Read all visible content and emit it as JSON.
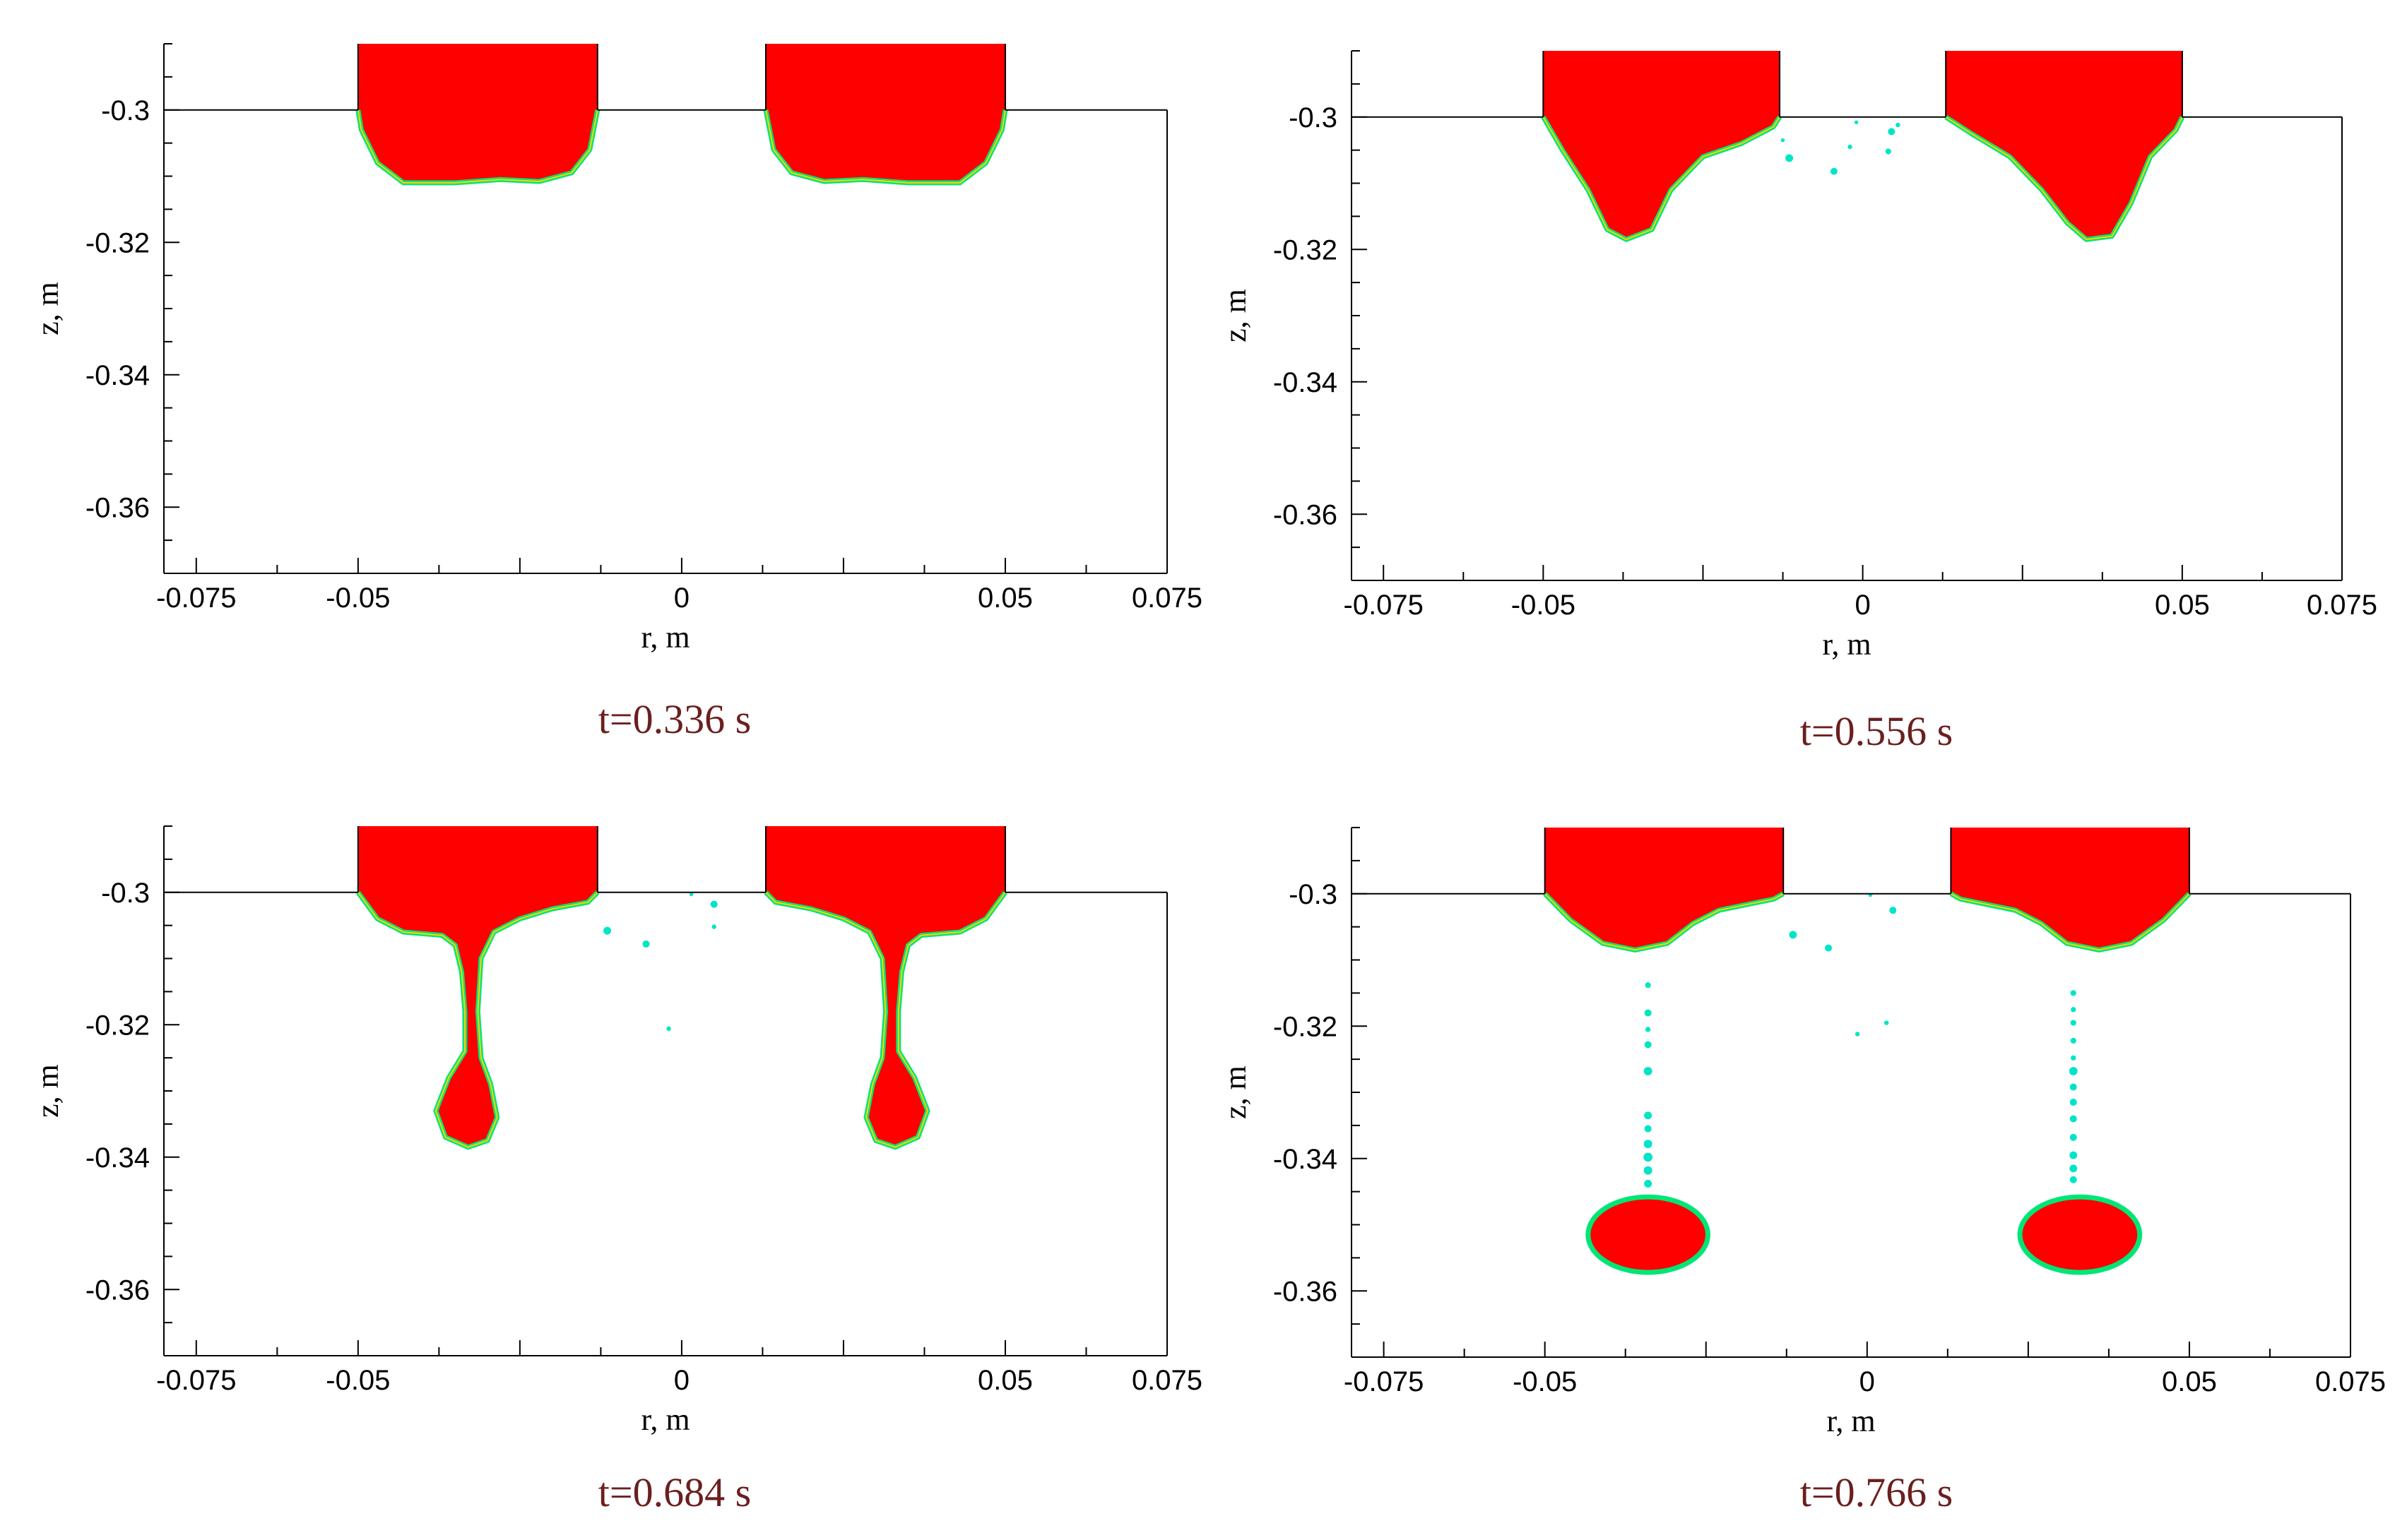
{
  "figure": {
    "colors": {
      "liquid": "#ff0000",
      "interface": "#00e676",
      "interface_inner": "#ffd400",
      "droplet": "#00e5c8",
      "axis": "#000000",
      "caption": "#6b1f1f"
    }
  },
  "chart_data": [
    {
      "type": "contour",
      "caption": "t=0.336 s",
      "xlabel": "r, m",
      "ylabel": "z, m",
      "xlim": [
        -0.08,
        0.075
      ],
      "ylim": [
        -0.37,
        -0.29
      ],
      "xticks": [
        -0.075,
        -0.05,
        0,
        0.05,
        0.075
      ],
      "xtick_labels": [
        "-0.075",
        "-0.05",
        "0",
        "0.05",
        "0.075"
      ],
      "yticks": [
        -0.3,
        -0.32,
        -0.34,
        -0.36
      ],
      "ytick_labels": [
        "-0.3",
        "-0.32",
        "-0.34",
        "-0.36"
      ],
      "wall_z": -0.3,
      "nozzles": [
        {
          "r": [
            -0.05,
            -0.013
          ],
          "profile": [
            [
              -0.05,
              -0.3
            ],
            [
              -0.0495,
              -0.303
            ],
            [
              -0.047,
              -0.308
            ],
            [
              -0.043,
              -0.311
            ],
            [
              -0.035,
              -0.311
            ],
            [
              -0.028,
              -0.3105
            ],
            [
              -0.022,
              -0.3108
            ],
            [
              -0.017,
              -0.3095
            ],
            [
              -0.0142,
              -0.306
            ],
            [
              -0.013,
              -0.3
            ]
          ]
        },
        {
          "r": [
            0.013,
            0.05
          ],
          "profile": [
            [
              0.013,
              -0.3
            ],
            [
              0.0142,
              -0.306
            ],
            [
              0.017,
              -0.3095
            ],
            [
              0.022,
              -0.3108
            ],
            [
              0.028,
              -0.3105
            ],
            [
              0.035,
              -0.311
            ],
            [
              0.043,
              -0.311
            ],
            [
              0.047,
              -0.308
            ],
            [
              0.0495,
              -0.303
            ],
            [
              0.05,
              -0.3
            ]
          ]
        }
      ],
      "drops": [],
      "satellites": []
    },
    {
      "type": "contour",
      "caption": "t=0.556 s",
      "xlabel": "r, m",
      "ylabel": "z, m",
      "xlim": [
        -0.08,
        0.075
      ],
      "ylim": [
        -0.37,
        -0.29
      ],
      "xticks": [
        -0.075,
        -0.05,
        0,
        0.05,
        0.075
      ],
      "xtick_labels": [
        "-0.075",
        "-0.05",
        "0",
        "0.05",
        "0.075"
      ],
      "yticks": [
        -0.3,
        -0.32,
        -0.34,
        -0.36
      ],
      "ytick_labels": [
        "-0.3",
        "-0.32",
        "-0.34",
        "-0.36"
      ],
      "wall_z": -0.3,
      "nozzles": [
        {
          "r": [
            -0.05,
            -0.013
          ],
          "profile": [
            [
              -0.05,
              -0.3
            ],
            [
              -0.047,
              -0.305
            ],
            [
              -0.043,
              -0.311
            ],
            [
              -0.04,
              -0.317
            ],
            [
              -0.037,
              -0.3185
            ],
            [
              -0.033,
              -0.317
            ],
            [
              -0.03,
              -0.311
            ],
            [
              -0.025,
              -0.306
            ],
            [
              -0.019,
              -0.304
            ],
            [
              -0.014,
              -0.3015
            ],
            [
              -0.013,
              -0.3
            ]
          ]
        },
        {
          "r": [
            0.013,
            0.05
          ],
          "profile": [
            [
              0.013,
              -0.3
            ],
            [
              0.017,
              -0.3025
            ],
            [
              0.023,
              -0.306
            ],
            [
              0.028,
              -0.311
            ],
            [
              0.032,
              -0.316
            ],
            [
              0.035,
              -0.3185
            ],
            [
              0.039,
              -0.318
            ],
            [
              0.042,
              -0.313
            ],
            [
              0.045,
              -0.306
            ],
            [
              0.049,
              -0.302
            ],
            [
              0.05,
              -0.3
            ]
          ]
        }
      ],
      "drops": [],
      "satellites": [
        {
          "r": -0.0125,
          "z": -0.3035,
          "d": 0.0006
        },
        {
          "r": -0.0115,
          "z": -0.3062,
          "d": 0.0012
        },
        {
          "r": -0.0045,
          "z": -0.3082,
          "d": 0.0011
        },
        {
          "r": -0.002,
          "z": -0.3045,
          "d": 0.0007
        },
        {
          "r": -0.001,
          "z": -0.3008,
          "d": 0.0006
        },
        {
          "r": 0.004,
          "z": -0.3052,
          "d": 0.0009
        },
        {
          "r": 0.0045,
          "z": -0.3022,
          "d": 0.0011
        },
        {
          "r": 0.0055,
          "z": -0.3012,
          "d": 0.0007
        }
      ]
    },
    {
      "type": "contour",
      "caption": "t=0.684 s",
      "xlabel": "r, m",
      "ylabel": "z, m",
      "xlim": [
        -0.08,
        0.075
      ],
      "ylim": [
        -0.37,
        -0.29
      ],
      "xticks": [
        -0.075,
        -0.05,
        0,
        0.05,
        0.075
      ],
      "xtick_labels": [
        "-0.075",
        "-0.05",
        "0",
        "0.05",
        "0.075"
      ],
      "yticks": [
        -0.3,
        -0.32,
        -0.34,
        -0.36
      ],
      "ytick_labels": [
        "-0.3",
        "-0.32",
        "-0.34",
        "-0.36"
      ],
      "wall_z": -0.3,
      "nozzles": [
        {
          "r": [
            -0.05,
            -0.013
          ],
          "profile": [
            [
              -0.05,
              -0.3
            ],
            [
              -0.047,
              -0.304
            ],
            [
              -0.043,
              -0.306
            ],
            [
              -0.037,
              -0.3065
            ],
            [
              -0.035,
              -0.308
            ],
            [
              -0.034,
              -0.312
            ],
            [
              -0.0335,
              -0.318
            ],
            [
              -0.0335,
              -0.324
            ],
            [
              -0.036,
              -0.328
            ],
            [
              -0.038,
              -0.333
            ],
            [
              -0.0365,
              -0.337
            ],
            [
              -0.033,
              -0.3385
            ],
            [
              -0.03,
              -0.3375
            ],
            [
              -0.0285,
              -0.334
            ],
            [
              -0.0295,
              -0.329
            ],
            [
              -0.031,
              -0.325
            ],
            [
              -0.0315,
              -0.318
            ],
            [
              -0.031,
              -0.31
            ],
            [
              -0.029,
              -0.306
            ],
            [
              -0.025,
              -0.304
            ],
            [
              -0.02,
              -0.3025
            ],
            [
              -0.0145,
              -0.3015
            ],
            [
              -0.013,
              -0.3
            ]
          ]
        },
        {
          "r": [
            0.013,
            0.05
          ],
          "profile": [
            [
              0.013,
              -0.3
            ],
            [
              0.0145,
              -0.3015
            ],
            [
              0.02,
              -0.3025
            ],
            [
              0.025,
              -0.304
            ],
            [
              0.029,
              -0.306
            ],
            [
              0.031,
              -0.31
            ],
            [
              0.0315,
              -0.318
            ],
            [
              0.031,
              -0.325
            ],
            [
              0.0295,
              -0.329
            ],
            [
              0.0285,
              -0.334
            ],
            [
              0.03,
              -0.3375
            ],
            [
              0.033,
              -0.3385
            ],
            [
              0.0365,
              -0.337
            ],
            [
              0.038,
              -0.333
            ],
            [
              0.036,
              -0.328
            ],
            [
              0.0335,
              -0.324
            ],
            [
              0.0335,
              -0.318
            ],
            [
              0.034,
              -0.312
            ],
            [
              0.035,
              -0.308
            ],
            [
              0.037,
              -0.3065
            ],
            [
              0.043,
              -0.306
            ],
            [
              0.047,
              -0.304
            ],
            [
              0.05,
              -0.3
            ]
          ]
        }
      ],
      "drops": [],
      "satellites": [
        {
          "r": -0.0115,
          "z": -0.3058,
          "d": 0.0012
        },
        {
          "r": -0.0055,
          "z": -0.3078,
          "d": 0.0011
        },
        {
          "r": -0.002,
          "z": -0.3206,
          "d": 0.0007
        },
        {
          "r": 0.0015,
          "z": -0.3003,
          "d": 0.0006
        },
        {
          "r": 0.005,
          "z": -0.3018,
          "d": 0.0011
        },
        {
          "r": 0.005,
          "z": -0.3052,
          "d": 0.0007
        }
      ]
    },
    {
      "type": "contour",
      "caption": "t=0.766 s",
      "xlabel": "r, m",
      "ylabel": "z, m",
      "xlim": [
        -0.08,
        0.075
      ],
      "ylim": [
        -0.37,
        -0.29
      ],
      "xticks": [
        -0.075,
        -0.05,
        0,
        0.05,
        0.075
      ],
      "xtick_labels": [
        "-0.075",
        "-0.05",
        "0",
        "0.05",
        "0.075"
      ],
      "yticks": [
        -0.3,
        -0.32,
        -0.34,
        -0.36
      ],
      "ytick_labels": [
        "-0.3",
        "-0.32",
        "-0.34",
        "-0.36"
      ],
      "wall_z": -0.3,
      "nozzles": [
        {
          "r": [
            -0.05,
            -0.013
          ],
          "profile": [
            [
              -0.05,
              -0.3
            ],
            [
              -0.046,
              -0.304
            ],
            [
              -0.041,
              -0.3075
            ],
            [
              -0.036,
              -0.3085
            ],
            [
              -0.031,
              -0.3075
            ],
            [
              -0.027,
              -0.3045
            ],
            [
              -0.023,
              -0.3025
            ],
            [
              -0.018,
              -0.3015
            ],
            [
              -0.0145,
              -0.3008
            ],
            [
              -0.013,
              -0.3
            ]
          ]
        },
        {
          "r": [
            0.013,
            0.05
          ],
          "profile": [
            [
              0.013,
              -0.3
            ],
            [
              0.0145,
              -0.3008
            ],
            [
              0.018,
              -0.3015
            ],
            [
              0.023,
              -0.3025
            ],
            [
              0.027,
              -0.3045
            ],
            [
              0.031,
              -0.3075
            ],
            [
              0.036,
              -0.3085
            ],
            [
              0.041,
              -0.3075
            ],
            [
              0.046,
              -0.304
            ],
            [
              0.05,
              -0.3
            ]
          ]
        }
      ],
      "drops": [
        {
          "r": -0.034,
          "z": -0.3515,
          "rx": 0.0093,
          "ry": 0.0057
        },
        {
          "r": 0.033,
          "z": -0.3515,
          "rx": 0.0093,
          "ry": 0.0057
        }
      ],
      "satellites": [
        {
          "r": -0.0115,
          "z": -0.3062,
          "d": 0.0012
        },
        {
          "r": -0.006,
          "z": -0.3082,
          "d": 0.0011
        },
        {
          "r": -0.0015,
          "z": -0.3212,
          "d": 0.0007
        },
        {
          "r": 0.0005,
          "z": -0.3002,
          "d": 0.0006
        },
        {
          "r": 0.004,
          "z": -0.3025,
          "d": 0.0011
        },
        {
          "r": 0.003,
          "z": -0.3195,
          "d": 0.0007
        },
        {
          "r": -0.034,
          "z": -0.3138,
          "d": 0.0009
        },
        {
          "r": -0.034,
          "z": -0.318,
          "d": 0.0011
        },
        {
          "r": -0.034,
          "z": -0.3205,
          "d": 0.0008
        },
        {
          "r": -0.034,
          "z": -0.3228,
          "d": 0.0011
        },
        {
          "r": -0.034,
          "z": -0.3268,
          "d": 0.0013
        },
        {
          "r": -0.034,
          "z": -0.3335,
          "d": 0.0012
        },
        {
          "r": -0.034,
          "z": -0.3355,
          "d": 0.0011
        },
        {
          "r": -0.034,
          "z": -0.3378,
          "d": 0.0013
        },
        {
          "r": -0.034,
          "z": -0.3398,
          "d": 0.0014
        },
        {
          "r": -0.034,
          "z": -0.3418,
          "d": 0.0013
        },
        {
          "r": -0.034,
          "z": -0.3438,
          "d": 0.0012
        },
        {
          "r": 0.032,
          "z": -0.315,
          "d": 0.0009
        },
        {
          "r": 0.032,
          "z": -0.3175,
          "d": 0.0008
        },
        {
          "r": 0.032,
          "z": -0.3195,
          "d": 0.0009
        },
        {
          "r": 0.032,
          "z": -0.3222,
          "d": 0.0009
        },
        {
          "r": 0.032,
          "z": -0.3248,
          "d": 0.0008
        },
        {
          "r": 0.032,
          "z": -0.3268,
          "d": 0.0013
        },
        {
          "r": 0.032,
          "z": -0.3292,
          "d": 0.0011
        },
        {
          "r": 0.032,
          "z": -0.3315,
          "d": 0.0011
        },
        {
          "r": 0.032,
          "z": -0.334,
          "d": 0.0011
        },
        {
          "r": 0.032,
          "z": -0.3368,
          "d": 0.0011
        },
        {
          "r": 0.032,
          "z": -0.3395,
          "d": 0.0012
        },
        {
          "r": 0.032,
          "z": -0.3415,
          "d": 0.0012
        },
        {
          "r": 0.032,
          "z": -0.3432,
          "d": 0.0011
        }
      ]
    }
  ]
}
